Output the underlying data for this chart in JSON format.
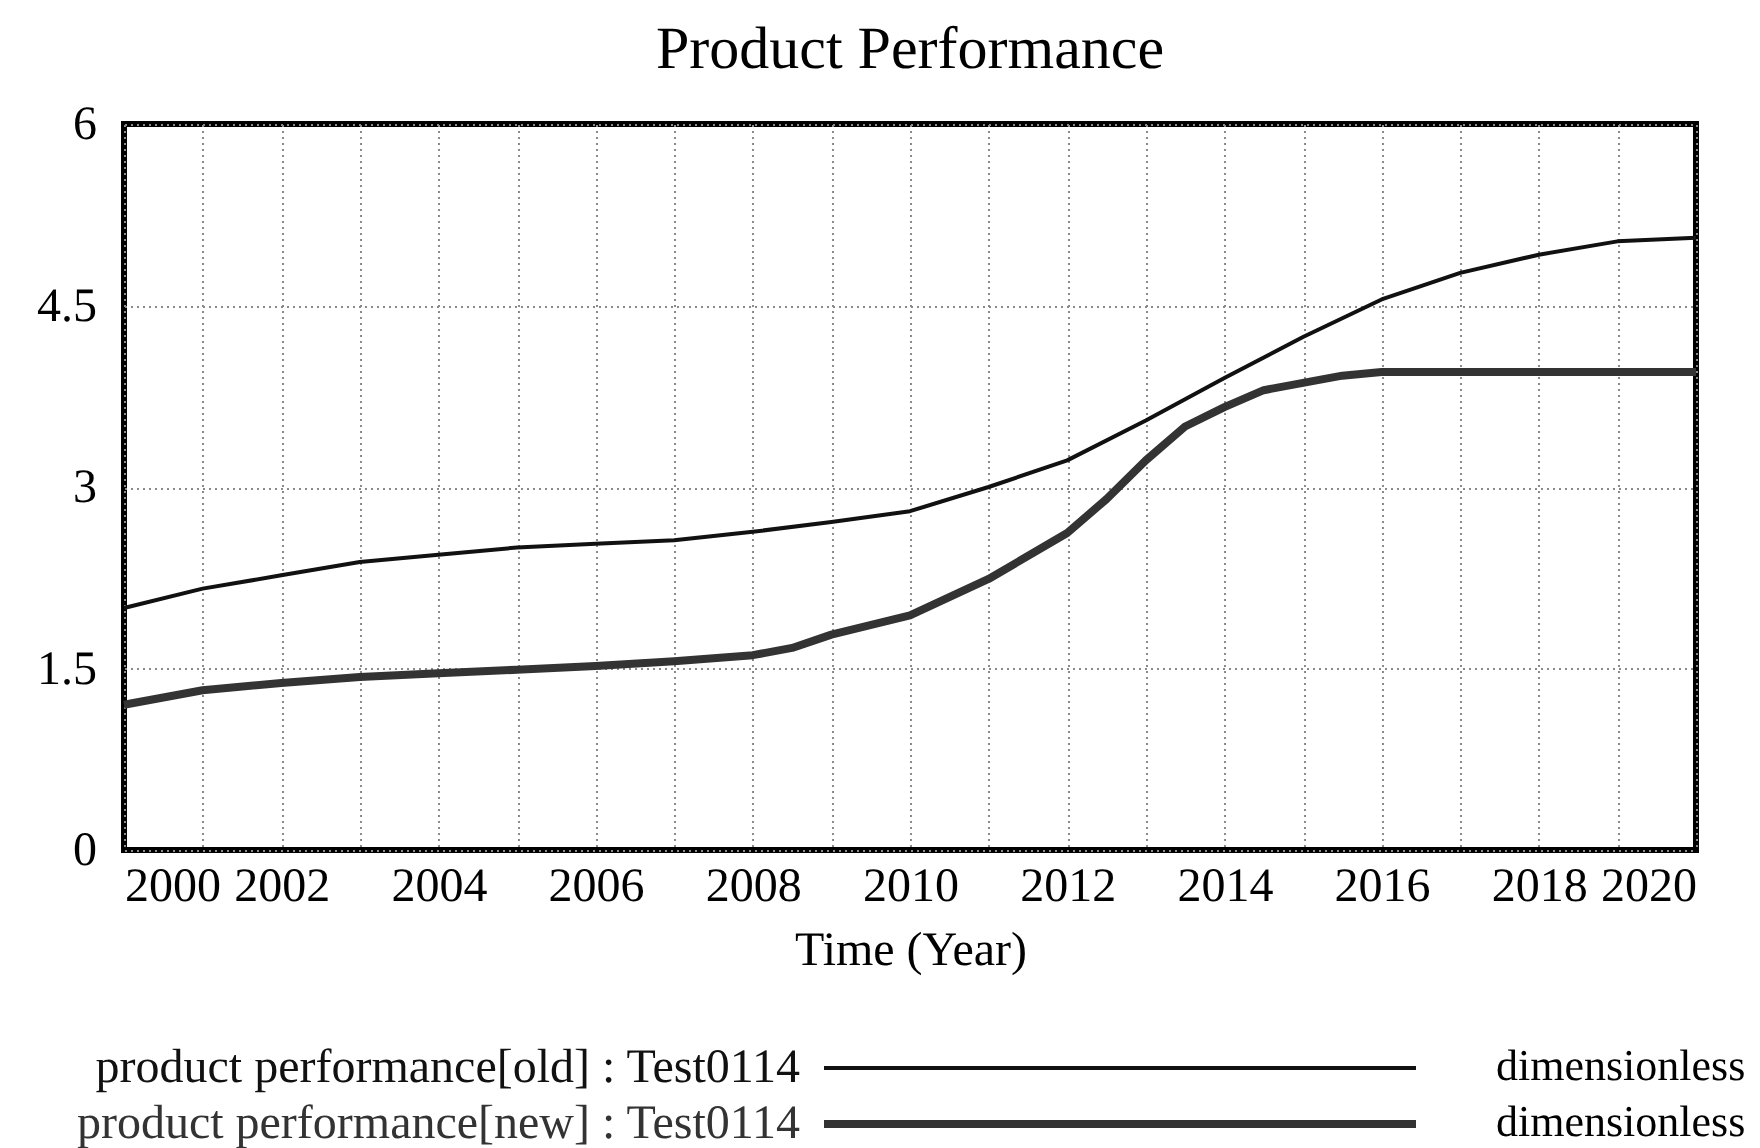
{
  "chart_data": {
    "type": "line",
    "title": "Product Performance",
    "xlabel": "Time (Year)",
    "xlim": [
      2000,
      2020
    ],
    "xticks": [
      2000,
      {
        "value": 2001,
        "label": null
      },
      2002,
      {
        "value": 2003,
        "label": null
      },
      2004,
      {
        "value": 2005,
        "label": null
      },
      2006,
      {
        "value": 2007,
        "label": null
      },
      2008,
      {
        "value": 2009,
        "label": null
      },
      2010,
      {
        "value": 2011,
        "label": null
      },
      2012,
      {
        "value": 2013,
        "label": null
      },
      2014,
      {
        "value": 2015,
        "label": null
      },
      2016,
      {
        "value": 2017,
        "label": null
      },
      2018,
      {
        "value": 2019,
        "label": null
      },
      2020
    ],
    "ylim": [
      0,
      6
    ],
    "yticks": [
      0,
      1.5,
      3,
      4.5,
      6
    ],
    "grid": true,
    "legend": "bottom",
    "series": [
      {
        "name": "product performance[old] : Test0114",
        "color": "#111111",
        "x": [
          2000,
          2001,
          2002,
          2003,
          2004,
          2005,
          2006,
          2007,
          2008,
          2009,
          2010,
          2011,
          2012,
          2013,
          2014,
          2015,
          2016,
          2017,
          2018,
          2019,
          2020
        ],
        "values": [
          2.0,
          2.16,
          2.27,
          2.38,
          2.44,
          2.5,
          2.53,
          2.56,
          2.63,
          2.71,
          2.8,
          3.0,
          3.22,
          3.55,
          3.9,
          4.24,
          4.55,
          4.77,
          4.92,
          5.03,
          5.06
        ]
      },
      {
        "name": "product performance[new] : Test0114",
        "color": "#333333",
        "x": [
          2000,
          2001,
          2002,
          2003,
          2004,
          2005,
          2006,
          2007,
          2008,
          2008.5,
          2009,
          2010,
          2011,
          2012,
          2012.5,
          2013,
          2013.5,
          2014,
          2014.5,
          2015,
          2015.5,
          2016,
          2017,
          2018,
          2019,
          2020
        ],
        "values": [
          1.2,
          1.32,
          1.38,
          1.43,
          1.46,
          1.49,
          1.52,
          1.56,
          1.61,
          1.67,
          1.78,
          1.94,
          2.24,
          2.62,
          2.9,
          3.22,
          3.5,
          3.66,
          3.8,
          3.86,
          3.92,
          3.95,
          3.95,
          3.95,
          3.95,
          3.95
        ]
      }
    ],
    "annotations": [
      "dimensionless",
      "dimensionless"
    ]
  }
}
